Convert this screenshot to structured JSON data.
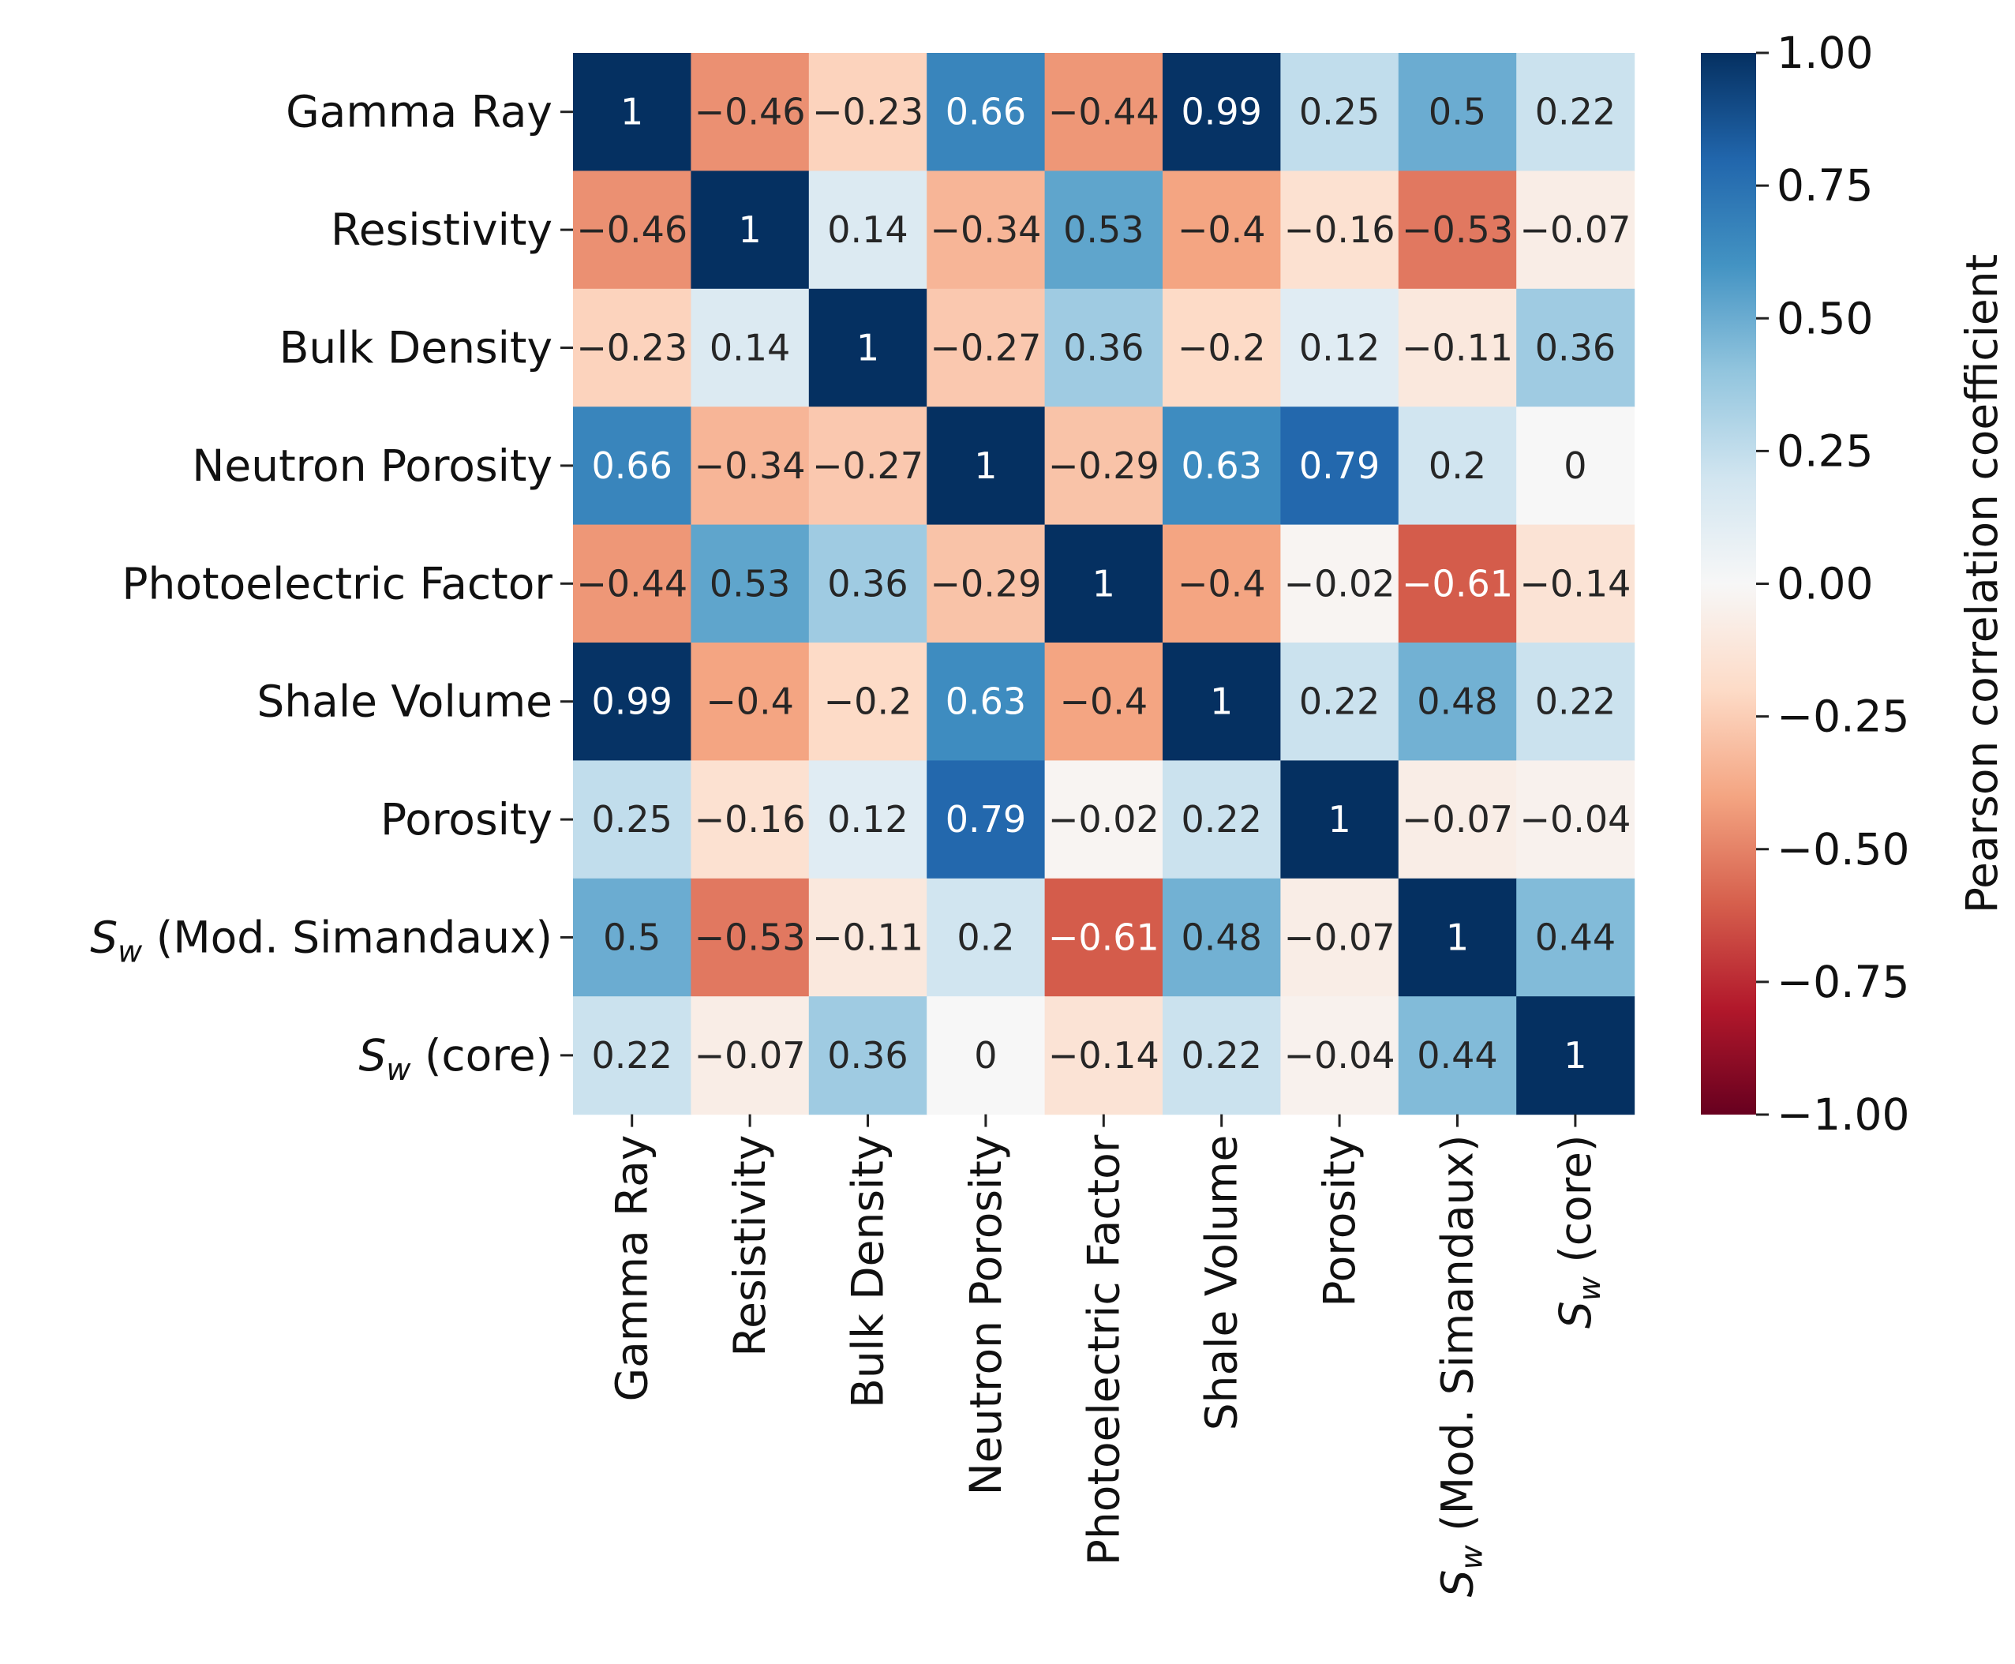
{
  "chart_data": {
    "type": "heatmap",
    "title": "",
    "variables": [
      {
        "label": "Gamma Ray",
        "symbol": "",
        "subscript": ""
      },
      {
        "label": "Resistivity",
        "symbol": "",
        "subscript": ""
      },
      {
        "label": "Bulk Density",
        "symbol": "",
        "subscript": ""
      },
      {
        "label": "Neutron Porosity",
        "symbol": "",
        "subscript": ""
      },
      {
        "label": "Photoelectric Factor",
        "symbol": "",
        "subscript": ""
      },
      {
        "label": "Shale Volume",
        "symbol": "",
        "subscript": ""
      },
      {
        "label": "Porosity",
        "symbol": "",
        "subscript": ""
      },
      {
        "label": " (Mod. Simandaux)",
        "symbol": "S",
        "subscript": "w"
      },
      {
        "label": " (core)",
        "symbol": "S",
        "subscript": "w"
      }
    ],
    "matrix": [
      [
        1,
        -0.46,
        -0.23,
        0.66,
        -0.44,
        0.99,
        0.25,
        0.5,
        0.22
      ],
      [
        -0.46,
        1,
        0.14,
        -0.34,
        0.53,
        -0.4,
        -0.16,
        -0.53,
        -0.07
      ],
      [
        -0.23,
        0.14,
        1,
        -0.27,
        0.36,
        -0.2,
        0.12,
        -0.11,
        0.36
      ],
      [
        0.66,
        -0.34,
        -0.27,
        1,
        -0.29,
        0.63,
        0.79,
        0.2,
        0
      ],
      [
        -0.44,
        0.53,
        0.36,
        -0.29,
        1,
        -0.4,
        -0.02,
        -0.61,
        -0.14
      ],
      [
        0.99,
        -0.4,
        -0.2,
        0.63,
        -0.4,
        1,
        0.22,
        0.48,
        0.22
      ],
      [
        0.25,
        -0.16,
        0.12,
        0.79,
        -0.02,
        0.22,
        1,
        -0.07,
        -0.04
      ],
      [
        0.5,
        -0.53,
        -0.11,
        0.2,
        -0.61,
        0.48,
        -0.07,
        1,
        0.44
      ],
      [
        0.22,
        -0.07,
        0.36,
        0,
        -0.14,
        0.22,
        -0.04,
        0.44,
        1
      ]
    ],
    "colorbar": {
      "label": "Pearson correlation coefficient",
      "range": [
        -1,
        1
      ],
      "ticks": [
        1.0,
        0.75,
        0.5,
        0.25,
        0.0,
        -0.25,
        -0.5,
        -0.75,
        -1.0
      ],
      "tick_labels": [
        "1.00",
        "0.75",
        "0.50",
        "0.25",
        "0.00",
        "−0.25",
        "−0.50",
        "−0.75",
        "−1.00"
      ],
      "colormap": "RdBu",
      "stops": [
        "#67001f",
        "#b2182b",
        "#d6604d",
        "#f4a582",
        "#fddbc7",
        "#f7f7f7",
        "#d1e5f0",
        "#92c5de",
        "#4393c3",
        "#2166ac",
        "#053061"
      ]
    }
  }
}
